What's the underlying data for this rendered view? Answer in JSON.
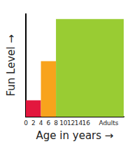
{
  "chart_data": {
    "type": "histogram",
    "xlabel": "Age in years →",
    "ylabel": "Fun Level →",
    "bins": [
      0,
      4,
      8,
      26
    ],
    "values": [
      1.6,
      5.4,
      9.5
    ],
    "colors": [
      "#e3173e",
      "#f8a31c",
      "#99cc33"
    ],
    "xlim": [
      0,
      26
    ],
    "xticks": [
      0,
      2,
      4,
      6,
      8,
      10,
      12,
      14,
      16,
      {
        "value": 22,
        "label": "Adults"
      }
    ],
    "ylim": [
      0,
      10
    ],
    "yticks": [],
    "grid": false,
    "tick_labels": "x"
  }
}
